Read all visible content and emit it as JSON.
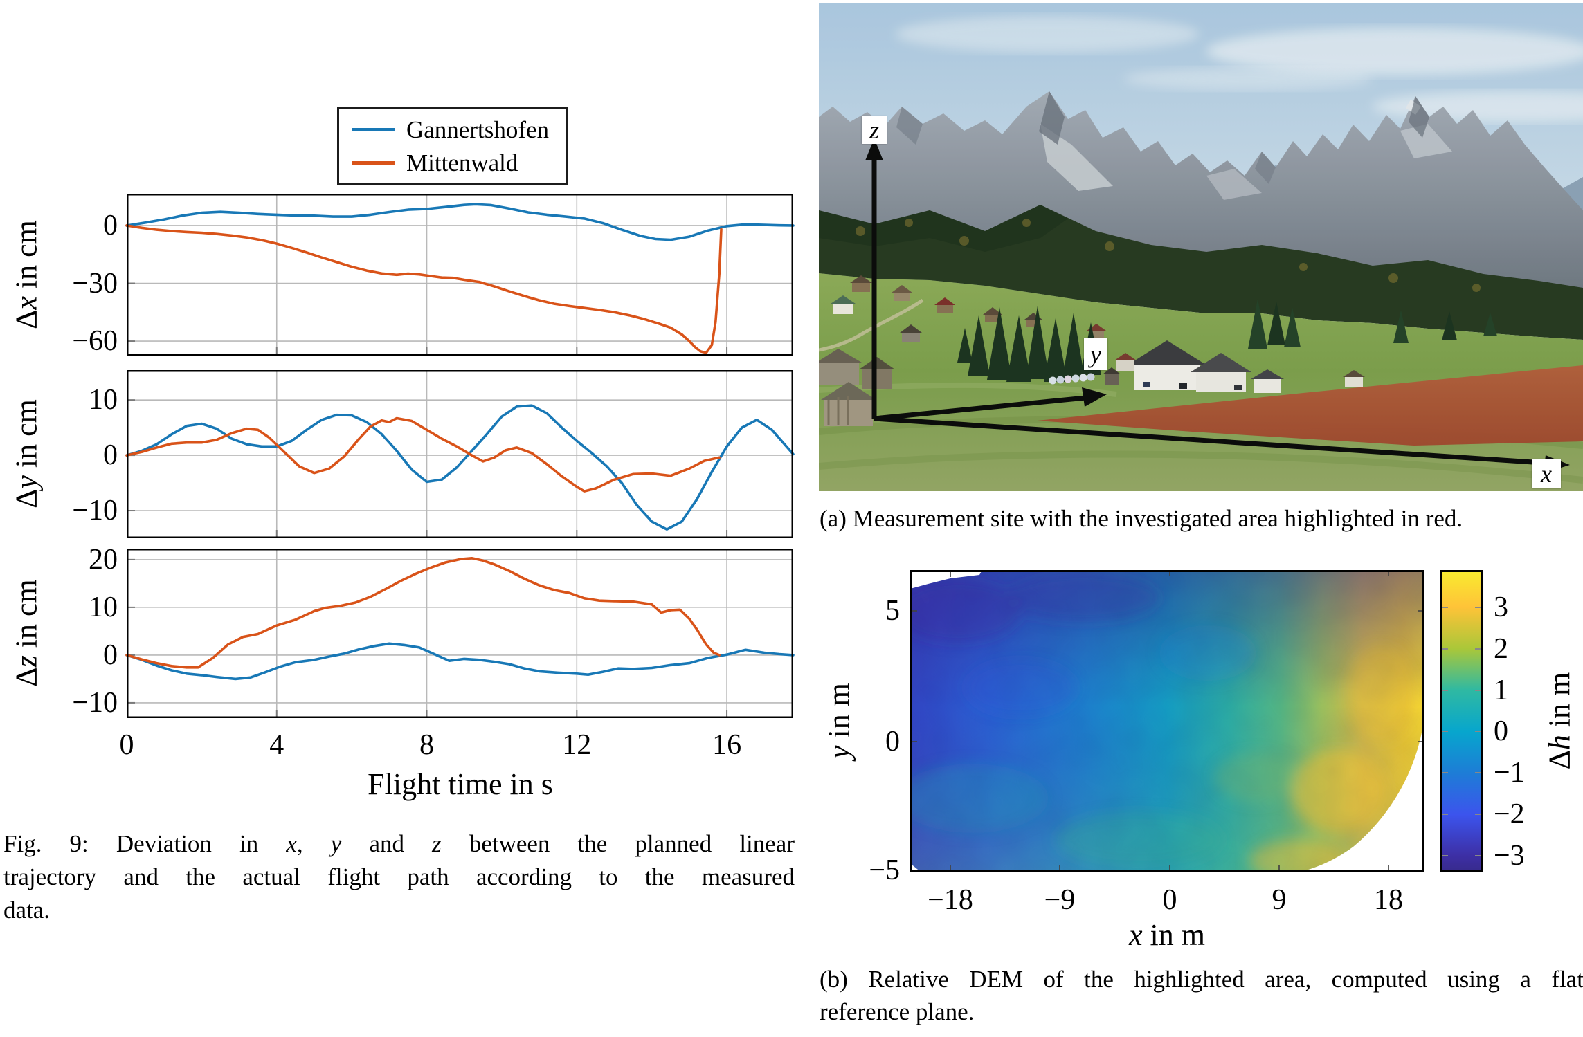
{
  "colors": {
    "series_blue": "#1878B6",
    "series_orange": "#D95319",
    "grid": "#b9b9b9",
    "axis": "#000000"
  },
  "legend": {
    "items": [
      {
        "label": "Gannertshofen",
        "color": "#1878B6"
      },
      {
        "label": "Mittenwald",
        "color": "#D95319"
      }
    ]
  },
  "flight_plots": {
    "x_ticks": [
      "0",
      "4",
      "8",
      "12",
      "16"
    ],
    "x_label_segments": [
      {
        "t": "Flight time in s"
      }
    ],
    "panels": [
      {
        "ylabel_segments": [
          {
            "t": "Δ"
          },
          {
            "t": "x",
            "i": true
          },
          {
            "t": " in cm"
          }
        ],
        "y_ticks": [
          "0",
          "−30",
          "−60"
        ]
      },
      {
        "ylabel_segments": [
          {
            "t": "Δ"
          },
          {
            "t": "y",
            "i": true
          },
          {
            "t": " in cm"
          }
        ],
        "y_ticks": [
          "10",
          "0",
          "−10"
        ]
      },
      {
        "ylabel_segments": [
          {
            "t": "Δ"
          },
          {
            "t": "z",
            "i": true
          },
          {
            "t": " in cm"
          }
        ],
        "y_ticks": [
          "20",
          "10",
          "0",
          "−10"
        ]
      }
    ]
  },
  "fig9_caption_lines": [
    [
      {
        "t": "Fig. 9: Deviation in "
      },
      {
        "t": "x",
        "i": true
      },
      {
        "t": ", "
      },
      {
        "t": "y",
        "i": true
      },
      {
        "t": " and "
      },
      {
        "t": "z",
        "i": true
      },
      {
        "t": " between the planned linear"
      }
    ],
    [
      {
        "t": "trajectory and the actual flight path according to the measured"
      }
    ],
    [
      {
        "t": "data."
      }
    ]
  ],
  "photo": {
    "axis_labels": {
      "x": "x",
      "y": "y",
      "z": "z"
    },
    "caption_segments": [
      {
        "t": "(a) Measurement site with the investigated area highlighted in red."
      }
    ]
  },
  "dem": {
    "y_label_segments": [
      {
        "t": "y",
        "i": true
      },
      {
        "t": " in m"
      }
    ],
    "x_label_segments": [
      {
        "t": "x",
        "i": true
      },
      {
        "t": " in m"
      }
    ],
    "y_ticks": [
      "5",
      "0",
      "−5"
    ],
    "x_ticks": [
      "−18",
      "−9",
      "0",
      "9",
      "18"
    ],
    "colorbar": {
      "label_segments": [
        {
          "t": "Δ"
        },
        {
          "t": "h",
          "i": true
        },
        {
          "t": " in m"
        }
      ],
      "ticks": [
        "3",
        "2",
        "1",
        "0",
        "−1",
        "−2",
        "−3"
      ]
    },
    "caption_lines": [
      [
        {
          "t": "(b) Relative DEM of the highlighted area, computed using a flat"
        }
      ],
      [
        {
          "t": "reference plane."
        }
      ]
    ]
  },
  "chart_data": [
    {
      "type": "line",
      "title": "Deviation in x",
      "xlabel": "Flight time in s",
      "ylabel": "Δx in cm",
      "xlim": [
        0,
        17.77
      ],
      "ylim": [
        -67.5,
        16.5
      ],
      "xticks": [
        0,
        4,
        8,
        12,
        16
      ],
      "yticks": [
        0,
        -30,
        -60
      ],
      "grid": true,
      "legend_position": "above plot, boxed",
      "series": [
        {
          "name": "Gannertshofen",
          "color": "#1878B6",
          "x": [
            0,
            0.5,
            1,
            1.5,
            2,
            2.5,
            3,
            3.5,
            4,
            4.5,
            5,
            5.5,
            6,
            6.5,
            7,
            7.5,
            8,
            8.5,
            9,
            9.3,
            9.7,
            10.2,
            10.7,
            11.2,
            11.7,
            12.2,
            12.7,
            13.2,
            13.7,
            14.1,
            14.5,
            15,
            15.5,
            16,
            16.5,
            17,
            17.4,
            17.77
          ],
          "y": [
            0,
            1.5,
            3.2,
            5.2,
            6.6,
            7.1,
            6.6,
            6,
            5.6,
            5.2,
            5.1,
            4.6,
            4.6,
            5.6,
            7,
            8.2,
            8.6,
            9.6,
            10.7,
            11,
            10.6,
            8.8,
            6.8,
            5.6,
            4.6,
            3.6,
            1.2,
            -2.2,
            -5.4,
            -7,
            -7.4,
            -5.8,
            -2.6,
            -0.3,
            0.6,
            0.3,
            0.1,
            0
          ]
        },
        {
          "name": "Mittenwald",
          "color": "#D95319",
          "x": [
            0,
            0.4,
            0.8,
            1.2,
            1.6,
            2,
            2.4,
            2.8,
            3.2,
            3.6,
            4,
            4.4,
            4.8,
            5.2,
            5.6,
            6,
            6.4,
            6.8,
            7.2,
            7.5,
            7.8,
            8.1,
            8.4,
            8.7,
            9,
            9.4,
            9.8,
            10.2,
            10.6,
            11,
            11.4,
            11.8,
            12.2,
            12.6,
            13,
            13.4,
            13.8,
            14.2,
            14.5,
            14.8,
            15,
            15.15,
            15.3,
            15.45,
            15.6,
            15.7,
            15.8,
            15.85
          ],
          "y": [
            0,
            -1.2,
            -2.2,
            -2.9,
            -3.4,
            -3.8,
            -4.4,
            -5.2,
            -6.2,
            -7.6,
            -9.4,
            -11.6,
            -14,
            -16.6,
            -19,
            -21.4,
            -23.4,
            -24.9,
            -25.6,
            -25,
            -25.4,
            -26.2,
            -27,
            -27.2,
            -28.2,
            -29.3,
            -31.6,
            -34.2,
            -36.6,
            -38.8,
            -40.6,
            -41.8,
            -42.8,
            -43.8,
            -45,
            -46.6,
            -48.6,
            -51,
            -53,
            -56.5,
            -60,
            -63,
            -65.3,
            -66,
            -62,
            -50,
            -25,
            -2
          ]
        }
      ]
    },
    {
      "type": "line",
      "title": "Deviation in y",
      "xlabel": "Flight time in s",
      "ylabel": "Δy in cm",
      "xlim": [
        0,
        17.77
      ],
      "ylim": [
        -15.0,
        15.4
      ],
      "xticks": [
        0,
        4,
        8,
        12,
        16
      ],
      "yticks": [
        10,
        0,
        -10
      ],
      "grid": true,
      "series": [
        {
          "name": "Gannertshofen",
          "color": "#1878B6",
          "x": [
            0,
            0.4,
            0.8,
            1.2,
            1.6,
            2,
            2.4,
            2.8,
            3.2,
            3.6,
            4,
            4.4,
            4.8,
            5.2,
            5.6,
            6,
            6.4,
            6.8,
            7.2,
            7.6,
            8,
            8.4,
            8.8,
            9.2,
            9.6,
            10,
            10.4,
            10.8,
            11.2,
            11.6,
            12,
            12.4,
            12.8,
            13.2,
            13.6,
            14,
            14.4,
            14.8,
            15.2,
            15.6,
            16,
            16.4,
            16.8,
            17.2,
            17.77
          ],
          "y": [
            0,
            0.8,
            2,
            3.8,
            5.3,
            5.7,
            4.8,
            3,
            2,
            1.6,
            1.6,
            2.6,
            4.6,
            6.4,
            7.3,
            7.2,
            6,
            3.8,
            0.8,
            -2.6,
            -4.8,
            -4.4,
            -2.2,
            0.8,
            3.8,
            7,
            8.8,
            9,
            7.6,
            5,
            2.6,
            0.4,
            -2,
            -5,
            -9,
            -12,
            -13.4,
            -12,
            -8,
            -3,
            1.6,
            5,
            6.4,
            4.6,
            0.2
          ]
        },
        {
          "name": "Mittenwald",
          "color": "#D95319",
          "x": [
            0,
            0.4,
            0.8,
            1.2,
            1.6,
            2,
            2.4,
            2.8,
            3.2,
            3.5,
            3.8,
            4.2,
            4.6,
            5,
            5.4,
            5.8,
            6.2,
            6.5,
            6.8,
            7,
            7.2,
            7.6,
            8,
            8.4,
            8.8,
            9.2,
            9.5,
            9.8,
            10.1,
            10.4,
            10.8,
            11.2,
            11.6,
            12,
            12.2,
            12.5,
            13,
            13.5,
            14,
            14.5,
            15,
            15.4,
            15.8
          ],
          "y": [
            0,
            0.6,
            1.4,
            2.1,
            2.3,
            2.3,
            2.8,
            4,
            4.8,
            4.6,
            3.2,
            0.6,
            -2,
            -3.2,
            -2.4,
            -0.2,
            3,
            5.2,
            6.3,
            6,
            6.7,
            6.2,
            4.6,
            3,
            1.6,
            0,
            -1.1,
            -0.4,
            0.9,
            1.4,
            0.4,
            -1.6,
            -3.8,
            -5.7,
            -6.5,
            -6,
            -4.4,
            -3.4,
            -3.3,
            -3.7,
            -2.4,
            -1,
            -0.4
          ]
        }
      ]
    },
    {
      "type": "line",
      "title": "Deviation in z",
      "xlabel": "Flight time in s",
      "ylabel": "Δz in cm",
      "xlim": [
        0,
        17.77
      ],
      "ylim": [
        -13.2,
        22.3
      ],
      "xticks": [
        0,
        4,
        8,
        12,
        16
      ],
      "yticks": [
        20,
        10,
        0,
        -10
      ],
      "grid": true,
      "series": [
        {
          "name": "Gannertshofen",
          "color": "#1878B6",
          "x": [
            0,
            0.4,
            0.8,
            1.2,
            1.6,
            2,
            2.4,
            2.9,
            3.3,
            3.7,
            4.1,
            4.5,
            5,
            5.4,
            5.8,
            6.2,
            6.6,
            7,
            7.4,
            7.8,
            8.2,
            8.6,
            9,
            9.4,
            9.8,
            10.2,
            10.6,
            11,
            11.5,
            12,
            12.3,
            12.7,
            13.1,
            13.5,
            14,
            14.5,
            15,
            15.5,
            16,
            16.5,
            17,
            17.4,
            17.77
          ],
          "y": [
            0,
            -1,
            -2.2,
            -3.2,
            -3.9,
            -4.2,
            -4.6,
            -5,
            -4.7,
            -3.6,
            -2.4,
            -1.5,
            -1,
            -0.3,
            0.3,
            1.2,
            1.9,
            2.4,
            2.1,
            1.6,
            0.2,
            -1.2,
            -0.8,
            -1,
            -1.4,
            -1.9,
            -2.8,
            -3.4,
            -3.7,
            -3.9,
            -4.1,
            -3.5,
            -2.8,
            -2.9,
            -2.7,
            -2.1,
            -1.7,
            -0.6,
            0.1,
            1.1,
            0.5,
            0.2,
            0
          ]
        },
        {
          "name": "Mittenwald",
          "color": "#D95319",
          "x": [
            0,
            0.4,
            0.8,
            1.2,
            1.6,
            1.9,
            2.3,
            2.7,
            3.1,
            3.5,
            4,
            4.5,
            5,
            5.3,
            5.7,
            6.1,
            6.5,
            6.9,
            7.3,
            7.7,
            8.1,
            8.5,
            8.9,
            9.2,
            9.5,
            9.8,
            10.2,
            10.6,
            11,
            11.4,
            11.8,
            12.2,
            12.6,
            13,
            13.5,
            14,
            14.25,
            14.5,
            14.75,
            15,
            15.2,
            15.45,
            15.65,
            15.8
          ],
          "y": [
            0,
            -0.9,
            -1.7,
            -2.3,
            -2.6,
            -2.6,
            -0.6,
            2.2,
            3.8,
            4.4,
            6.2,
            7.4,
            9.2,
            9.9,
            10.3,
            11,
            12.2,
            13.8,
            15.5,
            17,
            18.3,
            19.4,
            20.1,
            20.3,
            19.8,
            19,
            17.6,
            16,
            14.6,
            13.6,
            13,
            11.9,
            11.4,
            11.3,
            11.2,
            10.6,
            8.9,
            9.4,
            9.5,
            7.6,
            5.4,
            2.2,
            0.5,
            0
          ]
        }
      ]
    },
    {
      "type": "heatmap",
      "title": "Relative DEM of highlighted area",
      "xlabel": "x in m",
      "ylabel": "y in m",
      "colorbar_label": "Δh in m",
      "xlim": [
        -21.3,
        21.0
      ],
      "ylim": [
        -5.0,
        6.5
      ],
      "xticks": [
        -18,
        -9,
        0,
        9,
        18
      ],
      "yticks": [
        5,
        0,
        -5
      ],
      "colorbar_ticks": [
        3,
        2,
        1,
        0,
        -1,
        -2,
        -3
      ],
      "value_range": [
        -3.4,
        3.9
      ],
      "colormap": "parula",
      "pattern": "values rise from about -3 m (dark blue, north-west corner) through ~0 m (teal, centre) to about +3.5 m (yellow, eastern edge); no-data white wedges at top-left edge and bottom-right corner"
    }
  ]
}
